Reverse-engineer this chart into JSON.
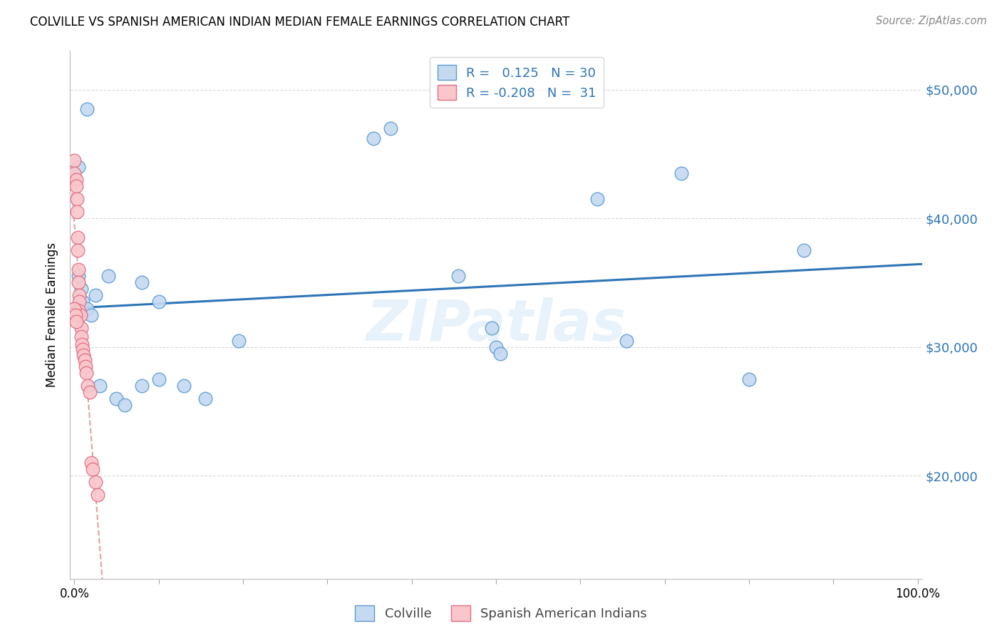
{
  "title": "COLVILLE VS SPANISH AMERICAN INDIAN MEDIAN FEMALE EARNINGS CORRELATION CHART",
  "source": "Source: ZipAtlas.com",
  "ylabel": "Median Female Earnings",
  "ytick_labels": [
    "$20,000",
    "$30,000",
    "$40,000",
    "$50,000"
  ],
  "ytick_values": [
    20000,
    30000,
    40000,
    50000
  ],
  "ymin": 12000,
  "ymax": 53000,
  "xmin": -0.005,
  "xmax": 1.005,
  "watermark": "ZIPatlas",
  "colville_R": 0.125,
  "colville_N": 30,
  "spanish_R": -0.208,
  "spanish_N": 31,
  "colville_color": "#c5d9f0",
  "colville_edge": "#5b9bd5",
  "spanish_color": "#f9c6cc",
  "spanish_edge": "#e07080",
  "colville_x": [
    0.015,
    0.355,
    0.375,
    0.005,
    0.005,
    0.008,
    0.01,
    0.015,
    0.02,
    0.025,
    0.04,
    0.08,
    0.1,
    0.13,
    0.155,
    0.195,
    0.455,
    0.495,
    0.5,
    0.505,
    0.62,
    0.655,
    0.72,
    0.8,
    0.865,
    0.03,
    0.05,
    0.06,
    0.08,
    0.1
  ],
  "colville_y": [
    48500,
    46200,
    47000,
    44000,
    35500,
    34500,
    33500,
    33000,
    32500,
    34000,
    35500,
    35000,
    33500,
    27000,
    26000,
    30500,
    35500,
    31500,
    30000,
    29500,
    41500,
    30500,
    43500,
    27500,
    37500,
    27000,
    26000,
    25500,
    27000,
    27500
  ],
  "spanish_x": [
    0.0,
    0.0,
    0.002,
    0.002,
    0.003,
    0.003,
    0.004,
    0.004,
    0.005,
    0.005,
    0.006,
    0.006,
    0.006,
    0.007,
    0.008,
    0.008,
    0.009,
    0.01,
    0.011,
    0.012,
    0.013,
    0.014,
    0.016,
    0.018,
    0.02,
    0.022,
    0.025,
    0.028,
    0.0,
    0.001,
    0.002
  ],
  "spanish_y": [
    44500,
    43500,
    43000,
    42500,
    41500,
    40500,
    38500,
    37500,
    36000,
    35000,
    34000,
    33500,
    32800,
    32500,
    31500,
    30800,
    30200,
    29800,
    29400,
    29000,
    28500,
    28000,
    27000,
    26500,
    21000,
    20500,
    19500,
    18500,
    33000,
    32500,
    32000
  ],
  "colville_line_color": "#2e75b6",
  "spanish_line_color": "#c9545a",
  "legend_colville_color": "#c5d9f0",
  "legend_spanish_color": "#f9c6cc",
  "legend_text_color": "#2e75b6",
  "grid_color": "#d0d0d0"
}
